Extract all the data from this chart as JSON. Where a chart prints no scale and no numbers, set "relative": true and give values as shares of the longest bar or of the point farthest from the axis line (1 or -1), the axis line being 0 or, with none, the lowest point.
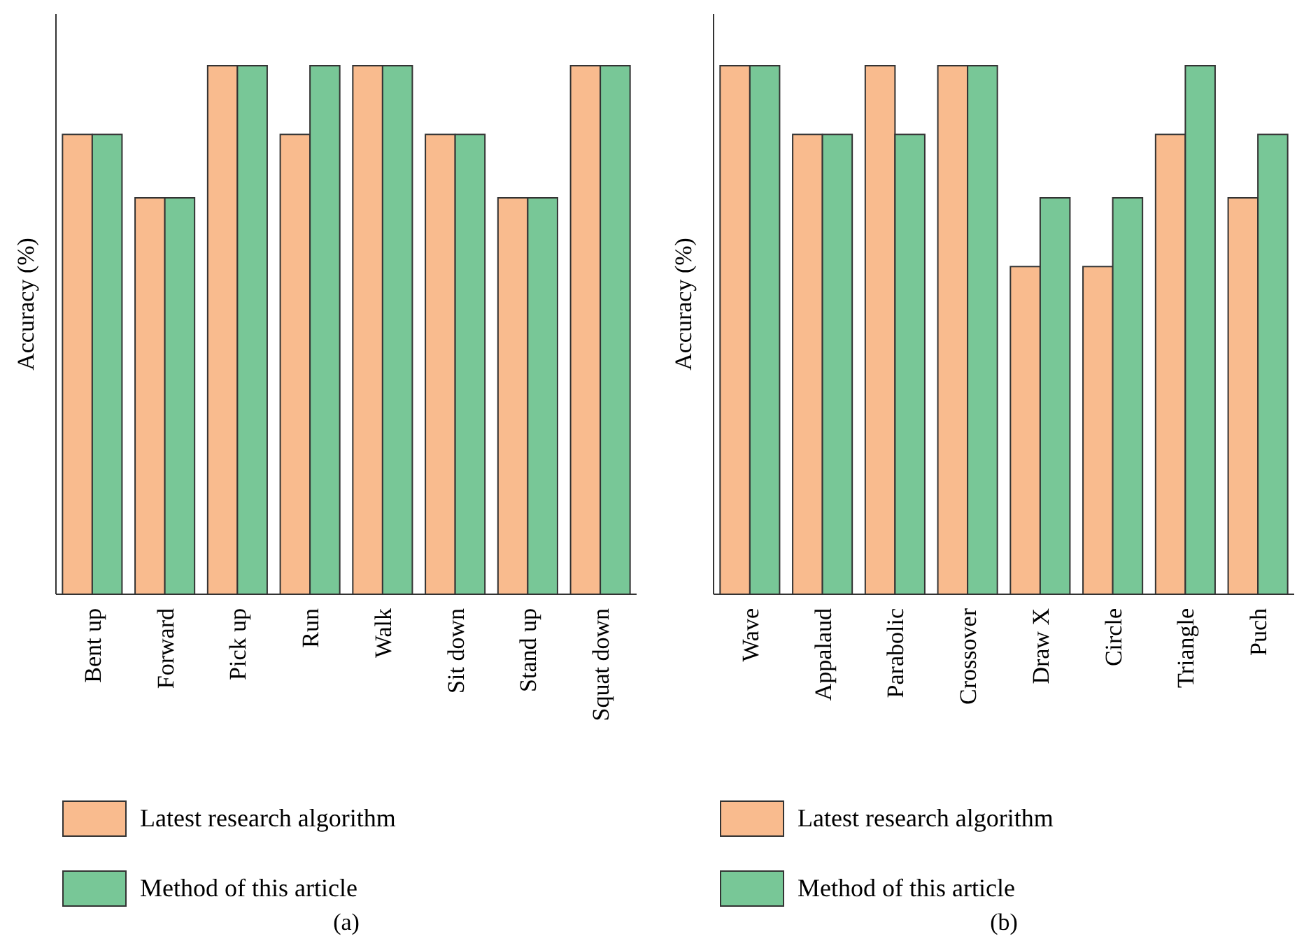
{
  "chart_data": [
    {
      "type": "bar",
      "title": "(a)",
      "ylabel": "Accuracy (%)",
      "relative": true,
      "legend": "bottom",
      "categories": [
        "Bent up",
        "Forward",
        "Pick up",
        "Run",
        "Walk",
        "Sit down",
        "Stand up",
        "Squat down"
      ],
      "series": [
        {
          "name": "Latest research algorithm",
          "color": "#f9bb8e",
          "values": [
            0.87,
            0.75,
            1,
            0.87,
            1,
            0.87,
            0.75,
            1
          ]
        },
        {
          "name": "Method of this article",
          "color": "#78c797",
          "values": [
            0.87,
            0.75,
            1,
            1,
            1,
            0.87,
            0.75,
            1
          ]
        }
      ]
    },
    {
      "type": "bar",
      "title": "(b)",
      "ylabel": "Accuracy (%)",
      "relative": true,
      "legend": "bottom",
      "categories": [
        "Wave",
        "Appalaud",
        "Parabolic",
        "Crossover",
        "Draw X",
        "Circle",
        "Triangle",
        "Puch"
      ],
      "series": [
        {
          "name": "Latest research algorithm",
          "color": "#f9bb8e",
          "values": [
            1,
            0.87,
            1,
            1,
            0.62,
            0.62,
            0.87,
            0.75
          ]
        },
        {
          "name": "Method of this article",
          "color": "#78c797",
          "values": [
            1,
            0.87,
            0.87,
            1,
            0.75,
            0.75,
            1,
            0.87
          ]
        }
      ]
    }
  ]
}
